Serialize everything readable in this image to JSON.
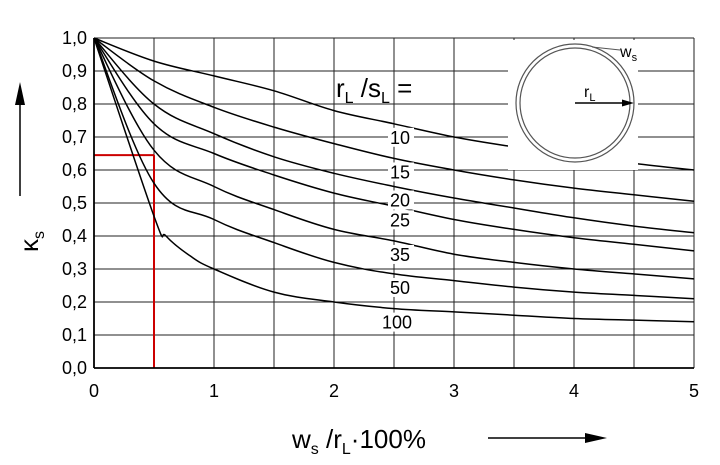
{
  "chart_data": {
    "type": "line",
    "xlim": [
      0,
      5
    ],
    "ylim": [
      0,
      1
    ],
    "x_ticks": [
      "0",
      "1",
      "2",
      "3",
      "4",
      "5"
    ],
    "y_ticks": [
      "0,0",
      "0,1",
      "0,2",
      "0,3",
      "0,4",
      "0,5",
      "0,6",
      "0,7",
      "0,8",
      "0,9",
      "1,0"
    ],
    "x_grid_step": 0.5,
    "y_grid_step": 0.1,
    "grid": true,
    "xlabel": {
      "main": "w",
      "sub1": "s",
      "mid": " /r",
      "sub2": "L",
      "end": "·100%"
    },
    "ylabel": {
      "main": "κ",
      "sub": "s"
    },
    "legend_title": {
      "r": "r",
      "sub_l1": "L",
      "mid": " /s",
      "sub_l2": "L",
      "eq": " ="
    },
    "series": [
      {
        "name": "10",
        "x": [
          0,
          0.5,
          1,
          1.5,
          2,
          2.5,
          3,
          3.5,
          4,
          4.5,
          5
        ],
        "y": [
          1.0,
          0.93,
          0.885,
          0.84,
          0.78,
          0.74,
          0.7,
          0.67,
          0.645,
          0.62,
          0.6
        ]
      },
      {
        "name": "15",
        "x": [
          0,
          0.5,
          1,
          1.5,
          2,
          2.5,
          3,
          3.5,
          4,
          4.5,
          5
        ],
        "y": [
          1.0,
          0.87,
          0.79,
          0.73,
          0.68,
          0.635,
          0.6,
          0.57,
          0.545,
          0.525,
          0.505
        ]
      },
      {
        "name": "20",
        "x": [
          0,
          0.5,
          1,
          1.5,
          2,
          2.5,
          3,
          3.5,
          4,
          4.5,
          5
        ],
        "y": [
          1.0,
          0.8,
          0.71,
          0.64,
          0.59,
          0.55,
          0.515,
          0.485,
          0.455,
          0.43,
          0.41
        ]
      },
      {
        "name": "25",
        "x": [
          0,
          0.5,
          1,
          1.5,
          2,
          2.5,
          3,
          3.5,
          4,
          4.5,
          5
        ],
        "y": [
          1.0,
          0.74,
          0.65,
          0.585,
          0.53,
          0.49,
          0.45,
          0.42,
          0.395,
          0.375,
          0.355
        ]
      },
      {
        "name": "35",
        "x": [
          0,
          0.5,
          1,
          1.5,
          2,
          2.5,
          3,
          3.5,
          4,
          4.5,
          5
        ],
        "y": [
          1.0,
          0.66,
          0.55,
          0.48,
          0.42,
          0.385,
          0.345,
          0.32,
          0.3,
          0.285,
          0.27
        ]
      },
      {
        "name": "50",
        "x": [
          0,
          0.5,
          1,
          1.5,
          2,
          2.5,
          3,
          3.5,
          4,
          4.5,
          5
        ],
        "y": [
          1.0,
          0.56,
          0.45,
          0.38,
          0.32,
          0.285,
          0.265,
          0.245,
          0.23,
          0.22,
          0.21
        ]
      },
      {
        "name": "100",
        "x": [
          0,
          0.5,
          0.6,
          0.8,
          1,
          1.5,
          2,
          2.5,
          3,
          3.5,
          4,
          4.5,
          5
        ],
        "y": [
          1.0,
          0.46,
          0.4,
          0.34,
          0.3,
          0.23,
          0.2,
          0.18,
          0.17,
          0.16,
          0.15,
          0.145,
          0.14
        ]
      }
    ],
    "example_reading": {
      "x": 0.5,
      "y": 0.645,
      "color": "#cc0000"
    },
    "inset": {
      "label_ws": {
        "main": "w",
        "sub": "s"
      },
      "label_rl": {
        "main": "r",
        "sub": "L"
      }
    }
  }
}
